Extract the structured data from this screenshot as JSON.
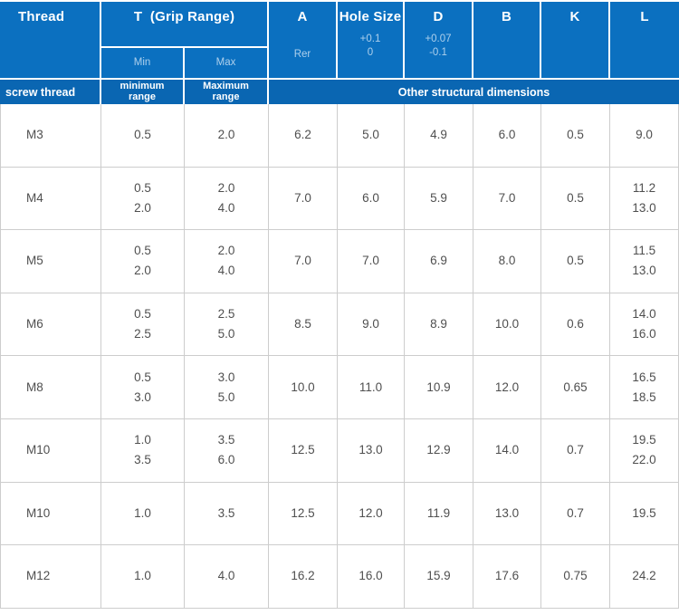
{
  "colors": {
    "header_blue": "#0b70c0",
    "band_blue": "#0a66b2",
    "sub_label_blue": "#aed0ec",
    "grid_border_gray": "#cdcdcd",
    "data_text_gray": "#4f4f4f"
  },
  "header": {
    "thread": "Thread",
    "grip_title": "T  (Grip Range)",
    "grip_min": "Min",
    "grip_max": "Max",
    "col_a": "A",
    "col_a_sub": "Rer",
    "hole_size": "Hole Size",
    "hole_tol": [
      "+0.1",
      "0"
    ],
    "col_d": "D",
    "d_tol": [
      "+0.07",
      "-0.1"
    ],
    "col_b": "B",
    "col_k": "K",
    "col_l": "L"
  },
  "subheader": {
    "screw_thread": "screw thread",
    "minimum_range": [
      "minimum",
      "range"
    ],
    "maximum_range": [
      "Maximum",
      "range"
    ],
    "other": "Other structural dimensions"
  },
  "rows": [
    {
      "thread": "M3",
      "t_min": [
        "0.5"
      ],
      "t_max": [
        "2.0"
      ],
      "a": [
        "6.2"
      ],
      "hole": [
        "5.0"
      ],
      "d": [
        "4.9"
      ],
      "b": [
        "6.0"
      ],
      "k": [
        "0.5"
      ],
      "l": [
        "9.0"
      ]
    },
    {
      "thread": "M4",
      "t_min": [
        "0.5",
        "2.0"
      ],
      "t_max": [
        "2.0",
        "4.0"
      ],
      "a": [
        "7.0"
      ],
      "hole": [
        "6.0"
      ],
      "d": [
        "5.9"
      ],
      "b": [
        "7.0"
      ],
      "k": [
        "0.5"
      ],
      "l": [
        "11.2",
        "13.0"
      ]
    },
    {
      "thread": "M5",
      "t_min": [
        "0.5",
        "2.0"
      ],
      "t_max": [
        "2.0",
        "4.0"
      ],
      "a": [
        "7.0"
      ],
      "hole": [
        "7.0"
      ],
      "d": [
        "6.9"
      ],
      "b": [
        "8.0"
      ],
      "k": [
        "0.5"
      ],
      "l": [
        "11.5",
        "13.0"
      ]
    },
    {
      "thread": "M6",
      "t_min": [
        "0.5",
        "2.5"
      ],
      "t_max": [
        "2.5",
        "5.0"
      ],
      "a": [
        "8.5"
      ],
      "hole": [
        "9.0"
      ],
      "d": [
        "8.9"
      ],
      "b": [
        "10.0"
      ],
      "k": [
        "0.6"
      ],
      "l": [
        "14.0",
        "16.0"
      ]
    },
    {
      "thread": "M8",
      "t_min": [
        "0.5",
        "3.0"
      ],
      "t_max": [
        "3.0",
        "5.0"
      ],
      "a": [
        "10.0"
      ],
      "hole": [
        "11.0"
      ],
      "d": [
        "10.9"
      ],
      "b": [
        "12.0"
      ],
      "k": [
        "0.65"
      ],
      "l": [
        "16.5",
        "18.5"
      ]
    },
    {
      "thread": "M10",
      "t_min": [
        "1.0",
        "3.5"
      ],
      "t_max": [
        "3.5",
        "6.0"
      ],
      "a": [
        "12.5"
      ],
      "hole": [
        "13.0"
      ],
      "d": [
        "12.9"
      ],
      "b": [
        "14.0"
      ],
      "k": [
        "0.7"
      ],
      "l": [
        "19.5",
        "22.0"
      ]
    },
    {
      "thread": "M10",
      "t_min": [
        "1.0"
      ],
      "t_max": [
        "3.5"
      ],
      "a": [
        "12.5"
      ],
      "hole": [
        "12.0"
      ],
      "d": [
        "11.9"
      ],
      "b": [
        "13.0"
      ],
      "k": [
        "0.7"
      ],
      "l": [
        "19.5"
      ]
    },
    {
      "thread": "M12",
      "t_min": [
        "1.0"
      ],
      "t_max": [
        "4.0"
      ],
      "a": [
        "16.2"
      ],
      "hole": [
        "16.0"
      ],
      "d": [
        "15.9"
      ],
      "b": [
        "17.6"
      ],
      "k": [
        "0.75"
      ],
      "l": [
        "24.2"
      ]
    }
  ],
  "chart_data": {
    "type": "table",
    "columns": [
      "Thread (screw thread)",
      "T Grip Range Min (minimum range)",
      "T Grip Range Max (Maximum range)",
      "A (Rer)",
      "Hole Size (+0.1 / 0)",
      "D (+0.07 / -0.1)",
      "B",
      "K",
      "L"
    ],
    "column_group_label": "Other structural dimensions",
    "rows": [
      [
        "M3",
        "0.5",
        "2.0",
        "6.2",
        "5.0",
        "4.9",
        "6.0",
        "0.5",
        "9.0"
      ],
      [
        "M4",
        "0.5 / 2.0",
        "2.0 / 4.0",
        "7.0",
        "6.0",
        "5.9",
        "7.0",
        "0.5",
        "11.2 / 13.0"
      ],
      [
        "M5",
        "0.5 / 2.0",
        "2.0 / 4.0",
        "7.0",
        "7.0",
        "6.9",
        "8.0",
        "0.5",
        "11.5 / 13.0"
      ],
      [
        "M6",
        "0.5 / 2.5",
        "2.5 / 5.0",
        "8.5",
        "9.0",
        "8.9",
        "10.0",
        "0.6",
        "14.0 / 16.0"
      ],
      [
        "M8",
        "0.5 / 3.0",
        "3.0 / 5.0",
        "10.0",
        "11.0",
        "10.9",
        "12.0",
        "0.65",
        "16.5 / 18.5"
      ],
      [
        "M10",
        "1.0 / 3.5",
        "3.5 / 6.0",
        "12.5",
        "13.0",
        "12.9",
        "14.0",
        "0.7",
        "19.5 / 22.0"
      ],
      [
        "M10",
        "1.0",
        "3.5",
        "12.5",
        "12.0",
        "11.9",
        "13.0",
        "0.7",
        "19.5"
      ],
      [
        "M12",
        "1.0",
        "4.0",
        "16.2",
        "16.0",
        "15.9",
        "17.6",
        "0.75",
        "24.2"
      ]
    ]
  }
}
